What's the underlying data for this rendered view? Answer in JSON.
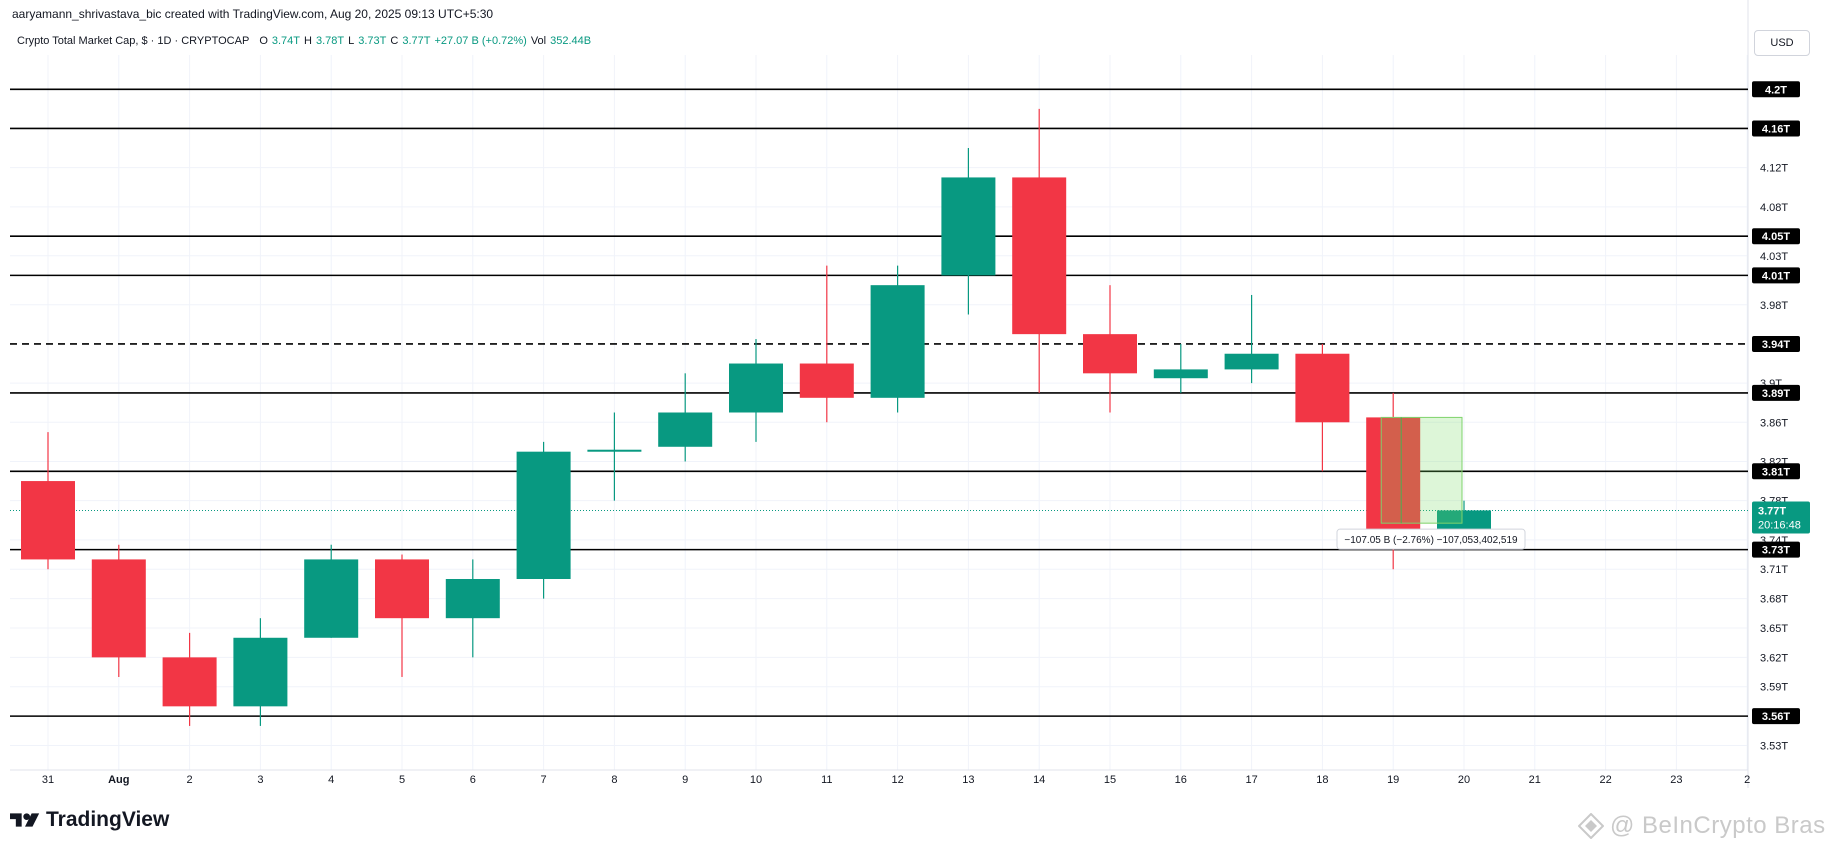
{
  "header": {
    "attribution": "aaryamann_shrivastava_bic created with TradingView.com, Aug 20, 2025 09:13 UTC+5:30",
    "symbol": "Crypto Total Market Cap, $ · 1D · CRYPTOCAP",
    "o_label": "O",
    "o_value": "3.74T",
    "h_label": "H",
    "h_value": "3.78T",
    "l_label": "L",
    "l_value": "3.73T",
    "c_label": "C",
    "c_value": "3.77T",
    "change": "+27.07 B (+0.72%)",
    "vol_label": "Vol",
    "vol_value": "352.44B"
  },
  "currency_button": "USD",
  "footer": {
    "logo_text": "TradingView",
    "watermark": "@ BeInCrypto Brasil"
  },
  "colors": {
    "up": "#089981",
    "down": "#f23645",
    "line": "#000000",
    "grid": "#f0f3fa"
  },
  "chart_data": {
    "type": "candlestick",
    "x_labels": [
      "31",
      "Aug",
      "2",
      "3",
      "4",
      "5",
      "6",
      "7",
      "8",
      "9",
      "10",
      "11",
      "12",
      "13",
      "14",
      "15",
      "16",
      "17",
      "18",
      "19",
      "20",
      "21",
      "22",
      "23",
      "2"
    ],
    "y_ticks": [
      "4.12T",
      "4.08T",
      "4.03T",
      "3.98T",
      "3.9T",
      "3.86T",
      "3.82T",
      "3.78T",
      "3.74T",
      "3.71T",
      "3.68T",
      "3.65T",
      "3.62T",
      "3.59T",
      "3.53T"
    ],
    "candles": [
      {
        "x": "31",
        "o": 3.8,
        "h": 3.85,
        "l": 3.71,
        "c": 3.72
      },
      {
        "x": "Aug",
        "o": 3.72,
        "h": 3.735,
        "l": 3.6,
        "c": 3.62
      },
      {
        "x": "2",
        "o": 3.62,
        "h": 3.645,
        "l": 3.55,
        "c": 3.57
      },
      {
        "x": "3",
        "o": 3.57,
        "h": 3.66,
        "l": 3.55,
        "c": 3.64
      },
      {
        "x": "4",
        "o": 3.64,
        "h": 3.735,
        "l": 3.64,
        "c": 3.72
      },
      {
        "x": "5",
        "o": 3.72,
        "h": 3.725,
        "l": 3.6,
        "c": 3.66
      },
      {
        "x": "6",
        "o": 3.66,
        "h": 3.72,
        "l": 3.62,
        "c": 3.7
      },
      {
        "x": "7",
        "o": 3.7,
        "h": 3.84,
        "l": 3.68,
        "c": 3.83
      },
      {
        "x": "8",
        "o": 3.83,
        "h": 3.87,
        "l": 3.78,
        "c": 3.832
      },
      {
        "x": "9",
        "o": 3.835,
        "h": 3.91,
        "l": 3.82,
        "c": 3.87
      },
      {
        "x": "10",
        "o": 3.87,
        "h": 3.945,
        "l": 3.84,
        "c": 3.92
      },
      {
        "x": "11",
        "o": 3.92,
        "h": 4.02,
        "l": 3.86,
        "c": 3.885
      },
      {
        "x": "12",
        "o": 3.885,
        "h": 4.02,
        "l": 3.87,
        "c": 4.0
      },
      {
        "x": "13",
        "o": 4.01,
        "h": 4.14,
        "l": 3.97,
        "c": 4.11
      },
      {
        "x": "14",
        "o": 4.11,
        "h": 4.18,
        "l": 3.89,
        "c": 3.95
      },
      {
        "x": "15",
        "o": 3.95,
        "h": 4.0,
        "l": 3.87,
        "c": 3.91
      },
      {
        "x": "16",
        "o": 3.905,
        "h": 3.94,
        "l": 3.89,
        "c": 3.914
      },
      {
        "x": "17",
        "o": 3.914,
        "h": 3.99,
        "l": 3.9,
        "c": 3.93
      },
      {
        "x": "18",
        "o": 3.93,
        "h": 3.94,
        "l": 3.81,
        "c": 3.86
      },
      {
        "x": "19",
        "o": 3.865,
        "h": 3.89,
        "l": 3.71,
        "c": 3.74
      },
      {
        "x": "20",
        "o": 3.74,
        "h": 3.78,
        "l": 3.73,
        "c": 3.77
      }
    ],
    "horizontal_lines": [
      {
        "value": 4.2,
        "label": "4.2T",
        "dashed": false
      },
      {
        "value": 4.16,
        "label": "4.16T",
        "dashed": false
      },
      {
        "value": 4.05,
        "label": "4.05T",
        "dashed": false
      },
      {
        "value": 4.01,
        "label": "4.01T",
        "dashed": false
      },
      {
        "value": 3.94,
        "label": "3.94T",
        "dashed": true
      },
      {
        "value": 3.89,
        "label": "3.89T",
        "dashed": false
      },
      {
        "value": 3.81,
        "label": "3.81T",
        "dashed": false
      },
      {
        "value": 3.73,
        "label": "3.73T",
        "dashed": false
      },
      {
        "value": 3.56,
        "label": "3.56T",
        "dashed": false
      }
    ],
    "current_price": {
      "value": 3.77,
      "label": "3.77T",
      "countdown": "20:16:48"
    },
    "measure": {
      "from": 3.865,
      "to": 3.757,
      "label": "−107.05 B (−2.76%) −107,053,402,519"
    },
    "ylim": [
      3.505,
      4.235
    ]
  }
}
